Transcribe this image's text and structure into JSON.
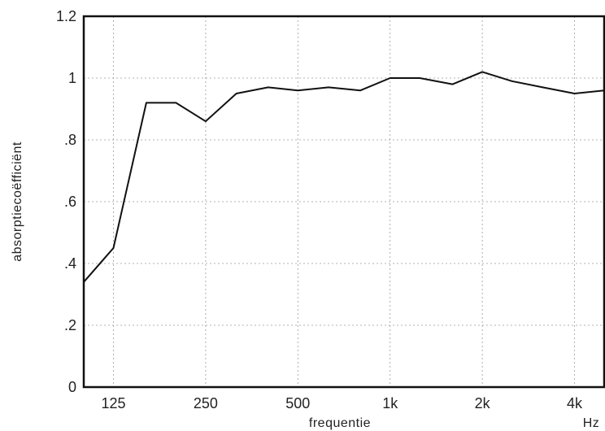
{
  "chart_data": {
    "type": "line",
    "xlabel": "frequentie",
    "ylabel": "absorptiecoëfficiënt",
    "x_scale": "log",
    "x_unit_label": "Hz",
    "xlim": [
      100,
      5000
    ],
    "ylim": [
      0,
      1.2
    ],
    "grid": true,
    "x_ticks": [
      {
        "value": 125,
        "label": "125"
      },
      {
        "value": 250,
        "label": "250"
      },
      {
        "value": 500,
        "label": "500"
      },
      {
        "value": 1000,
        "label": "1k"
      },
      {
        "value": 2000,
        "label": "2k"
      },
      {
        "value": 4000,
        "label": "4k"
      }
    ],
    "y_ticks": [
      {
        "value": 0,
        "label": "0"
      },
      {
        "value": 0.2,
        "label": ".2"
      },
      {
        "value": 0.4,
        "label": ".4"
      },
      {
        "value": 0.6,
        "label": ".6"
      },
      {
        "value": 0.8,
        "label": ".8"
      },
      {
        "value": 1.0,
        "label": "1"
      },
      {
        "value": 1.2,
        "label": "1.2"
      }
    ],
    "series": [
      {
        "x": [
          100,
          125,
          160,
          200,
          250,
          315,
          400,
          500,
          630,
          800,
          1000,
          1250,
          1600,
          2000,
          2500,
          3150,
          4000,
          5000
        ],
        "values": [
          0.34,
          0.45,
          0.92,
          0.92,
          0.86,
          0.95,
          0.97,
          0.96,
          0.97,
          0.96,
          1.0,
          1.0,
          0.98,
          1.02,
          0.99,
          0.97,
          0.95,
          0.96
        ]
      }
    ]
  }
}
